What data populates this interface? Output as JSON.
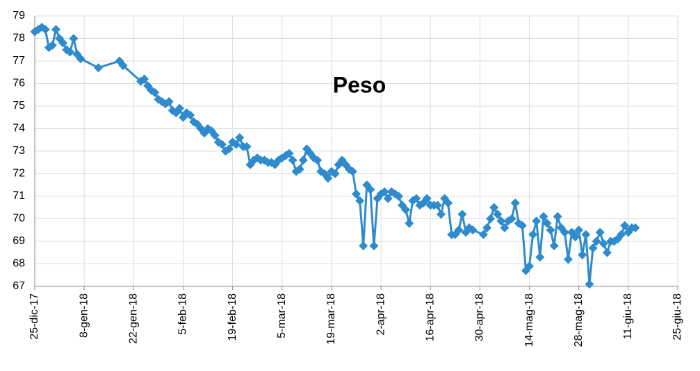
{
  "chart_data": {
    "type": "line",
    "title": "Peso",
    "color": "#2e8bcd",
    "grid": true,
    "x": [
      "2017-12-25",
      "2017-12-26",
      "2017-12-27",
      "2017-12-28",
      "2017-12-29",
      "2017-12-30",
      "2017-12-31",
      "2018-01-01",
      "2018-01-02",
      "2018-01-03",
      "2018-01-04",
      "2018-01-05",
      "2018-01-06",
      "2018-01-07",
      "2018-01-12",
      "2018-01-18",
      "2018-01-19",
      "2018-01-24",
      "2018-01-25",
      "2018-01-26",
      "2018-01-27",
      "2018-01-28",
      "2018-01-29",
      "2018-01-30",
      "2018-01-31",
      "2018-02-01",
      "2018-02-02",
      "2018-02-03",
      "2018-02-04",
      "2018-02-05",
      "2018-02-06",
      "2018-02-07",
      "2018-02-08",
      "2018-02-09",
      "2018-02-10",
      "2018-02-11",
      "2018-02-12",
      "2018-02-13",
      "2018-02-14",
      "2018-02-15",
      "2018-02-16",
      "2018-02-17",
      "2018-02-18",
      "2018-02-19",
      "2018-02-20",
      "2018-02-21",
      "2018-02-22",
      "2018-02-23",
      "2018-02-24",
      "2018-02-25",
      "2018-02-26",
      "2018-02-27",
      "2018-02-28",
      "2018-03-01",
      "2018-03-02",
      "2018-03-03",
      "2018-03-04",
      "2018-03-05",
      "2018-03-06",
      "2018-03-07",
      "2018-03-08",
      "2018-03-09",
      "2018-03-10",
      "2018-03-11",
      "2018-03-12",
      "2018-03-13",
      "2018-03-14",
      "2018-03-15",
      "2018-03-16",
      "2018-03-17",
      "2018-03-18",
      "2018-03-19",
      "2018-03-20",
      "2018-03-21",
      "2018-03-22",
      "2018-03-23",
      "2018-03-24",
      "2018-03-25",
      "2018-03-26",
      "2018-03-27",
      "2018-03-28",
      "2018-03-29",
      "2018-03-30",
      "2018-03-31",
      "2018-04-01",
      "2018-04-02",
      "2018-04-03",
      "2018-04-04",
      "2018-04-05",
      "2018-04-06",
      "2018-04-07",
      "2018-04-08",
      "2018-04-09",
      "2018-04-10",
      "2018-04-11",
      "2018-04-12",
      "2018-04-13",
      "2018-04-14",
      "2018-04-15",
      "2018-04-16",
      "2018-04-17",
      "2018-04-18",
      "2018-04-19",
      "2018-04-20",
      "2018-04-21",
      "2018-04-22",
      "2018-04-23",
      "2018-04-24",
      "2018-04-25",
      "2018-04-26",
      "2018-04-27",
      "2018-04-28",
      "2018-05-01",
      "2018-05-02",
      "2018-05-03",
      "2018-05-04",
      "2018-05-05",
      "2018-05-06",
      "2018-05-07",
      "2018-05-08",
      "2018-05-09",
      "2018-05-10",
      "2018-05-11",
      "2018-05-12",
      "2018-05-13",
      "2018-05-14",
      "2018-05-15",
      "2018-05-16",
      "2018-05-17",
      "2018-05-18",
      "2018-05-19",
      "2018-05-20",
      "2018-05-21",
      "2018-05-22",
      "2018-05-23",
      "2018-05-24",
      "2018-05-25",
      "2018-05-26",
      "2018-05-27",
      "2018-05-28",
      "2018-05-29",
      "2018-05-30",
      "2018-05-31",
      "2018-06-01",
      "2018-06-02",
      "2018-06-03",
      "2018-06-04",
      "2018-06-05",
      "2018-06-06",
      "2018-06-07",
      "2018-06-08",
      "2018-06-09",
      "2018-06-10",
      "2018-06-11",
      "2018-06-12",
      "2018-06-13"
    ],
    "values": [
      78.3,
      78.4,
      78.5,
      78.4,
      77.6,
      77.7,
      78.4,
      78.0,
      77.8,
      77.5,
      77.4,
      78.0,
      77.3,
      77.1,
      76.7,
      77.0,
      76.8,
      76.1,
      76.2,
      75.9,
      75.7,
      75.6,
      75.3,
      75.2,
      75.1,
      75.2,
      74.8,
      74.7,
      74.9,
      74.5,
      74.7,
      74.6,
      74.3,
      74.2,
      74.0,
      73.8,
      74.0,
      73.9,
      73.7,
      73.4,
      73.3,
      73.0,
      73.1,
      73.4,
      73.3,
      73.6,
      73.2,
      73.2,
      72.4,
      72.6,
      72.7,
      72.6,
      72.6,
      72.5,
      72.5,
      72.4,
      72.6,
      72.7,
      72.8,
      72.9,
      72.6,
      72.1,
      72.2,
      72.6,
      73.1,
      72.9,
      72.7,
      72.6,
      72.1,
      72.0,
      71.8,
      72.1,
      72.0,
      72.4,
      72.6,
      72.4,
      72.2,
      72.1,
      71.1,
      70.8,
      68.8,
      71.5,
      71.3,
      68.8,
      70.9,
      71.1,
      71.2,
      70.9,
      71.2,
      71.1,
      71.0,
      70.6,
      70.4,
      69.8,
      70.8,
      70.9,
      70.6,
      70.7,
      70.9,
      70.6,
      70.6,
      70.6,
      70.2,
      70.9,
      70.7,
      69.3,
      69.3,
      69.5,
      70.2,
      69.4,
      69.6,
      69.5,
      69.3,
      69.6,
      70.0,
      70.5,
      70.2,
      69.9,
      69.6,
      69.9,
      70.0,
      70.7,
      69.8,
      69.7,
      67.7,
      67.9,
      69.3,
      69.9,
      68.3,
      70.1,
      69.8,
      69.5,
      68.8,
      70.1,
      69.6,
      69.4,
      68.2,
      69.4,
      69.2,
      69.5,
      68.4,
      69.3,
      67.1,
      68.7,
      69.0,
      69.4,
      68.9,
      68.5,
      69.0,
      69.0,
      69.1,
      69.3,
      69.7,
      69.4,
      69.6,
      69.6
    ],
    "xlim": [
      "2017-12-25",
      "2018-06-25"
    ],
    "xticks": [
      {
        "value": "2017-12-25",
        "label": "25-dic-17"
      },
      {
        "value": "2018-01-08",
        "label": "8-gen-18"
      },
      {
        "value": "2018-01-22",
        "label": "22-gen-18"
      },
      {
        "value": "2018-02-05",
        "label": "5-feb-18"
      },
      {
        "value": "2018-02-19",
        "label": "19-feb-18"
      },
      {
        "value": "2018-03-05",
        "label": "5-mar-18"
      },
      {
        "value": "2018-03-19",
        "label": "19-mar-18"
      },
      {
        "value": "2018-04-02",
        "label": "2-apr-18"
      },
      {
        "value": "2018-04-16",
        "label": "16-apr-18"
      },
      {
        "value": "2018-04-30",
        "label": "30-apr-18"
      },
      {
        "value": "2018-05-14",
        "label": "14-mag-18"
      },
      {
        "value": "2018-05-28",
        "label": "28-mag-18"
      },
      {
        "value": "2018-06-11",
        "label": "11-giu-18"
      },
      {
        "value": "2018-06-25",
        "label": "25-giu-18"
      }
    ],
    "ylim": [
      67,
      79
    ],
    "yticks": [
      67,
      68,
      69,
      70,
      71,
      72,
      73,
      74,
      75,
      76,
      77,
      78,
      79
    ]
  }
}
